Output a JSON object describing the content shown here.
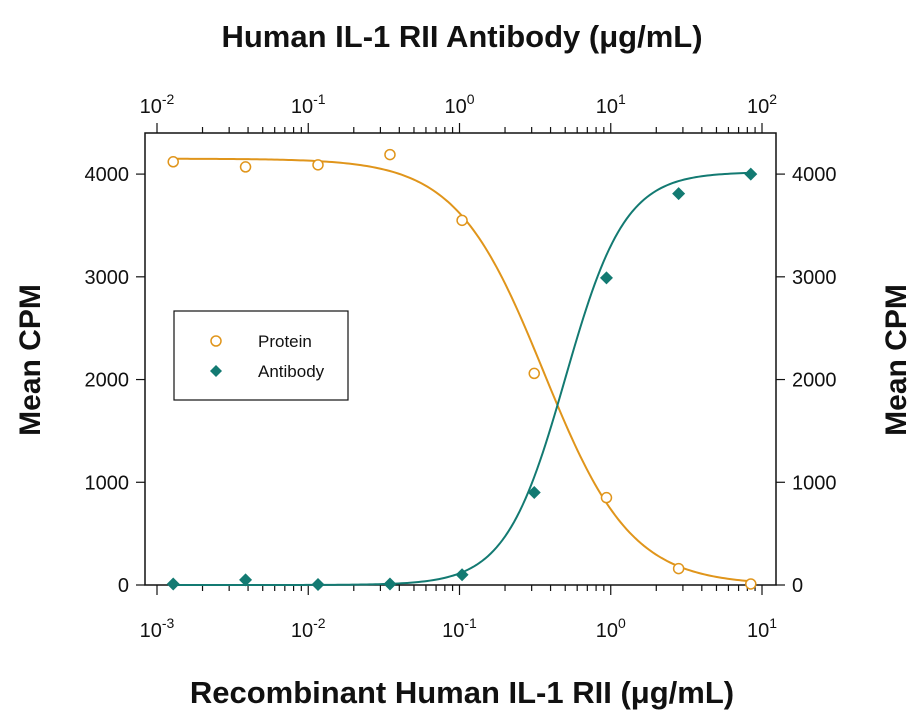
{
  "chart_data": {
    "type": "scatter",
    "title": "Human IL-1 RII Antibody (μg/mL)",
    "xlabel": "Recombinant Human IL-1 RII (μg/mL)",
    "ylabel": "Mean CPM",
    "ylabel_right": "Mean CPM",
    "x_scale": "log",
    "xlim": [
      0.001,
      10
    ],
    "x_ticks": [
      {
        "value": 0.001,
        "base": "10",
        "exp": "-3"
      },
      {
        "value": 0.01,
        "base": "10",
        "exp": "-2"
      },
      {
        "value": 0.1,
        "base": "10",
        "exp": "-1"
      },
      {
        "value": 1,
        "base": "10",
        "exp": "0"
      },
      {
        "value": 10,
        "base": "10",
        "exp": "1"
      }
    ],
    "top_axis": {
      "scale": "log",
      "xlim": [
        0.01,
        100
      ],
      "ticks": [
        {
          "value": 0.01,
          "base": "10",
          "exp": "-2"
        },
        {
          "value": 0.1,
          "base": "10",
          "exp": "-1"
        },
        {
          "value": 1,
          "base": "10",
          "exp": "0"
        },
        {
          "value": 10,
          "base": "10",
          "exp": "1"
        },
        {
          "value": 100,
          "base": "10",
          "exp": "2"
        }
      ]
    },
    "ylim": [
      0,
      4400
    ],
    "y_ticks": [
      "0",
      "1000",
      "2000",
      "3000",
      "4000"
    ],
    "grid": false,
    "legend": {
      "position": "center-left"
    },
    "series": [
      {
        "name": "Protein",
        "marker": "open-circle",
        "color": "#E0951B",
        "axis": "bottom",
        "x": [
          0.00128,
          0.00385,
          0.0116,
          0.0347,
          0.104,
          0.312,
          0.937,
          2.81,
          8.43
        ],
        "y": [
          4120,
          4070,
          4090,
          4190,
          3550,
          2060,
          850,
          160,
          10
        ],
        "fit": {
          "top": 4150,
          "bottom": 0,
          "ec50": 0.36,
          "hill": 1.5
        }
      },
      {
        "name": "Antibody",
        "marker": "filled-diamond",
        "color": "#137A72",
        "axis": "top",
        "x": [
          0.0128,
          0.0385,
          0.116,
          0.347,
          1.04,
          3.12,
          9.37,
          28.1,
          84.3
        ],
        "y": [
          10,
          50,
          5,
          10,
          100,
          900,
          2990,
          3810,
          4000
        ],
        "fit": {
          "top": 4020,
          "bottom": 0,
          "ec50": 5.0,
          "hill": 2.2
        }
      }
    ]
  }
}
